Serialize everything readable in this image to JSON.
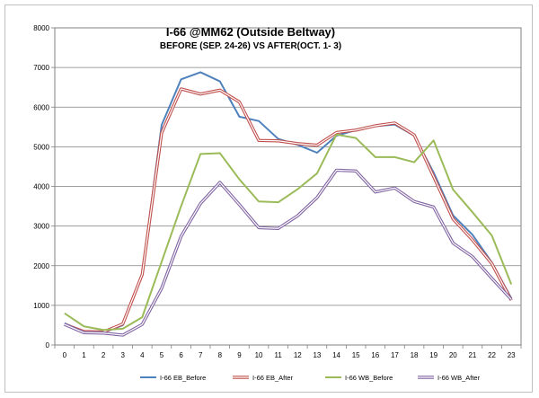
{
  "chart_data": {
    "type": "line",
    "title": "I-66 @MM62 (Outside Beltway)",
    "subtitle": "BEFORE (SEP. 24-26) VS AFTER(OCT. 1- 3)",
    "xlabel": "",
    "ylabel": "",
    "x": [
      0,
      1,
      2,
      3,
      4,
      5,
      6,
      7,
      8,
      9,
      10,
      11,
      12,
      13,
      14,
      15,
      16,
      17,
      18,
      19,
      20,
      21,
      22,
      23
    ],
    "ylim": [
      0,
      8000
    ],
    "yticks": [
      0,
      1000,
      2000,
      3000,
      4000,
      5000,
      6000,
      7000,
      8000
    ],
    "grid": true,
    "legend_position": "bottom",
    "series": [
      {
        "name": "I-66 EB_Before",
        "color": "#4f81bd",
        "style": "solid",
        "values": [
          550,
          330,
          310,
          500,
          1800,
          5550,
          6700,
          6880,
          6650,
          5760,
          5650,
          5200,
          5050,
          4850,
          5280,
          5420,
          5520,
          5560,
          5280,
          4350,
          3270,
          2780,
          2080,
          1180
        ]
      },
      {
        "name": "I-66 EB_After",
        "color": "#c0504d",
        "style": "double",
        "values": [
          520,
          340,
          330,
          530,
          1780,
          5350,
          6460,
          6330,
          6430,
          6130,
          5160,
          5150,
          5080,
          5040,
          5360,
          5420,
          5530,
          5600,
          5300,
          4250,
          3180,
          2650,
          2050,
          1130
        ]
      },
      {
        "name": "I-66 WB_Before",
        "color": "#9bbb59",
        "style": "solid",
        "values": [
          800,
          470,
          380,
          410,
          700,
          2100,
          3500,
          4820,
          4840,
          4180,
          3620,
          3600,
          3930,
          4330,
          5310,
          5220,
          4740,
          4740,
          4610,
          5160,
          3920,
          3350,
          2760,
          1530
        ]
      },
      {
        "name": "I-66 WB_After",
        "color": "#8064a2",
        "style": "double",
        "values": [
          520,
          310,
          300,
          250,
          520,
          1430,
          2740,
          3570,
          4100,
          3540,
          2960,
          2940,
          3260,
          3720,
          4410,
          4390,
          3860,
          3960,
          3620,
          3480,
          2570,
          2230,
          1680,
          1150
        ]
      }
    ]
  }
}
